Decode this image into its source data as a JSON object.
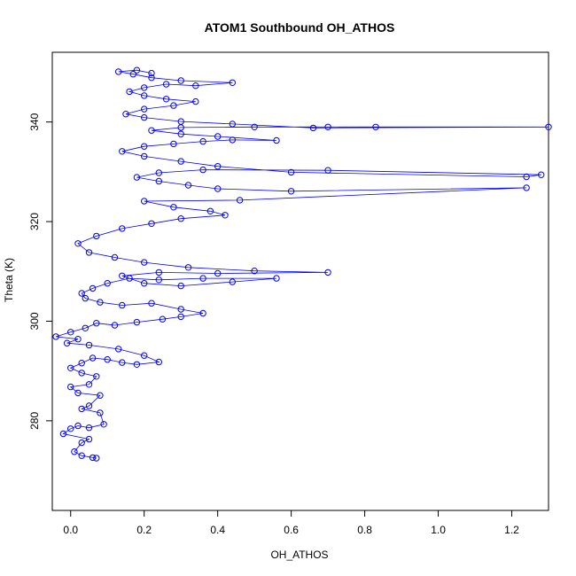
{
  "chart_data": {
    "type": "line",
    "title": "ATOM1 Southbound OH_ATHOS",
    "xlabel": "OH_ATHOS",
    "ylabel": "Theta (K)",
    "xlim": [
      -0.05,
      1.3
    ],
    "ylim": [
      262,
      354
    ],
    "xticks": [
      0.0,
      0.2,
      0.4,
      0.6,
      0.8,
      1.0,
      1.2
    ],
    "xtick_labels": [
      "0.0",
      "0.2",
      "0.4",
      "0.6",
      "0.8",
      "1.0",
      "1.2"
    ],
    "yticks": [
      280,
      300,
      320,
      340
    ],
    "ytick_labels": [
      "280",
      "300",
      "320",
      "340"
    ],
    "grid": false,
    "markers": "open-circle",
    "series": [
      {
        "color": "#0000ff",
        "points": [
          [
            0.06,
            272.6
          ],
          [
            0.07,
            272.5
          ],
          [
            0.03,
            273.0
          ],
          [
            0.01,
            273.8
          ],
          [
            0.03,
            275.6
          ],
          [
            0.05,
            276.3
          ],
          [
            -0.02,
            277.4
          ],
          [
            0.0,
            278.4
          ],
          [
            0.02,
            279.0
          ],
          [
            0.05,
            278.6
          ],
          [
            0.09,
            279.3
          ],
          [
            0.08,
            281.6
          ],
          [
            0.03,
            282.4
          ],
          [
            0.05,
            283.0
          ],
          [
            0.08,
            285.1
          ],
          [
            0.02,
            285.6
          ],
          [
            0.0,
            286.8
          ],
          [
            0.05,
            287.3
          ],
          [
            0.07,
            288.9
          ],
          [
            0.03,
            289.6
          ],
          [
            0.0,
            290.6
          ],
          [
            0.03,
            291.6
          ],
          [
            0.06,
            292.6
          ],
          [
            0.1,
            292.3
          ],
          [
            0.14,
            291.7
          ],
          [
            0.18,
            291.3
          ],
          [
            0.24,
            291.8
          ],
          [
            0.2,
            293.1
          ],
          [
            0.13,
            294.4
          ],
          [
            0.05,
            295.2
          ],
          [
            -0.01,
            295.6
          ],
          [
            0.02,
            296.4
          ],
          [
            -0.04,
            296.9
          ],
          [
            0.0,
            297.8
          ],
          [
            0.04,
            298.6
          ],
          [
            0.07,
            299.6
          ],
          [
            0.12,
            299.2
          ],
          [
            0.18,
            299.8
          ],
          [
            0.25,
            300.4
          ],
          [
            0.3,
            300.9
          ],
          [
            0.36,
            301.6
          ],
          [
            0.3,
            302.4
          ],
          [
            0.22,
            303.6
          ],
          [
            0.14,
            303.2
          ],
          [
            0.08,
            303.8
          ],
          [
            0.04,
            304.6
          ],
          [
            0.03,
            305.6
          ],
          [
            0.06,
            306.6
          ],
          [
            0.1,
            307.6
          ],
          [
            0.16,
            308.6
          ],
          [
            0.24,
            308.3
          ],
          [
            0.36,
            308.6
          ],
          [
            0.56,
            308.6
          ],
          [
            0.44,
            307.9
          ],
          [
            0.3,
            307.1
          ],
          [
            0.2,
            307.6
          ],
          [
            0.14,
            309.1
          ],
          [
            0.24,
            309.8
          ],
          [
            0.4,
            309.6
          ],
          [
            0.7,
            309.8
          ],
          [
            0.5,
            310.1
          ],
          [
            0.32,
            310.8
          ],
          [
            0.2,
            311.8
          ],
          [
            0.12,
            312.8
          ],
          [
            0.05,
            313.8
          ],
          [
            0.02,
            315.6
          ],
          [
            0.07,
            317.1
          ],
          [
            0.14,
            318.6
          ],
          [
            0.22,
            319.6
          ],
          [
            0.3,
            320.6
          ],
          [
            0.42,
            321.3
          ],
          [
            0.38,
            322.1
          ],
          [
            0.28,
            322.9
          ],
          [
            0.2,
            324.1
          ],
          [
            0.46,
            324.3
          ],
          [
            1.24,
            326.8
          ],
          [
            0.6,
            326.1
          ],
          [
            0.4,
            326.6
          ],
          [
            0.32,
            327.3
          ],
          [
            0.24,
            328.1
          ],
          [
            0.18,
            328.9
          ],
          [
            0.24,
            329.8
          ],
          [
            0.36,
            330.4
          ],
          [
            0.7,
            330.3
          ],
          [
            1.28,
            329.4
          ],
          [
            1.24,
            329.0
          ],
          [
            0.6,
            329.9
          ],
          [
            0.4,
            331.1
          ],
          [
            0.3,
            332.1
          ],
          [
            0.2,
            333.1
          ],
          [
            0.14,
            334.1
          ],
          [
            0.2,
            335.1
          ],
          [
            0.28,
            335.6
          ],
          [
            0.36,
            336.1
          ],
          [
            0.44,
            336.4
          ],
          [
            0.56,
            336.3
          ],
          [
            0.4,
            337.1
          ],
          [
            0.3,
            337.6
          ],
          [
            0.22,
            338.3
          ],
          [
            0.3,
            338.9
          ],
          [
            0.5,
            339.0
          ],
          [
            0.7,
            339.0
          ],
          [
            0.83,
            339.0
          ],
          [
            1.3,
            339.0
          ],
          [
            0.66,
            338.8
          ],
          [
            0.44,
            339.6
          ],
          [
            0.3,
            340.1
          ],
          [
            0.2,
            340.9
          ],
          [
            0.15,
            341.6
          ],
          [
            0.2,
            342.6
          ],
          [
            0.28,
            343.3
          ],
          [
            0.34,
            344.1
          ],
          [
            0.26,
            344.6
          ],
          [
            0.2,
            345.3
          ],
          [
            0.16,
            346.1
          ],
          [
            0.2,
            346.9
          ],
          [
            0.26,
            347.6
          ],
          [
            0.34,
            347.3
          ],
          [
            0.44,
            347.9
          ],
          [
            0.3,
            348.3
          ],
          [
            0.22,
            348.9
          ],
          [
            0.17,
            349.6
          ],
          [
            0.13,
            350.1
          ],
          [
            0.18,
            350.4
          ],
          [
            0.22,
            349.8
          ]
        ]
      }
    ]
  }
}
